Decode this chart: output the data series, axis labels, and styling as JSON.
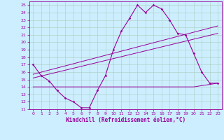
{
  "xlabel": "Windchill (Refroidissement éolien,°C)",
  "bg_color": "#cceeff",
  "grid_color": "#aaccbb",
  "line_color": "#990099",
  "xlim": [
    -0.5,
    23.5
  ],
  "ylim": [
    11,
    25.5
  ],
  "xticks": [
    0,
    1,
    2,
    3,
    4,
    5,
    6,
    7,
    8,
    9,
    10,
    11,
    12,
    13,
    14,
    15,
    16,
    17,
    18,
    19,
    20,
    21,
    22,
    23
  ],
  "yticks": [
    11,
    12,
    13,
    14,
    15,
    16,
    17,
    18,
    19,
    20,
    21,
    22,
    23,
    24,
    25
  ],
  "series1_x": [
    0,
    1,
    2,
    3,
    4,
    5,
    6,
    7,
    8,
    9,
    10,
    11,
    12,
    13,
    14,
    15,
    16,
    17,
    18,
    19,
    20,
    21,
    22,
    23
  ],
  "series1_y": [
    17.0,
    15.5,
    14.8,
    13.5,
    12.5,
    12.0,
    11.2,
    11.2,
    13.5,
    15.5,
    19.0,
    21.5,
    23.2,
    25.0,
    24.0,
    25.0,
    24.5,
    23.0,
    21.2,
    21.0,
    18.5,
    16.0,
    14.5,
    14.5
  ],
  "series2_x": [
    0,
    2,
    9,
    20,
    23
  ],
  "series2_y": [
    14.0,
    14.0,
    14.0,
    14.0,
    14.5
  ],
  "series3_x": [
    0,
    23
  ],
  "series3_y": [
    15.2,
    21.2
  ],
  "series4_x": [
    0,
    23
  ],
  "series4_y": [
    15.7,
    22.2
  ]
}
